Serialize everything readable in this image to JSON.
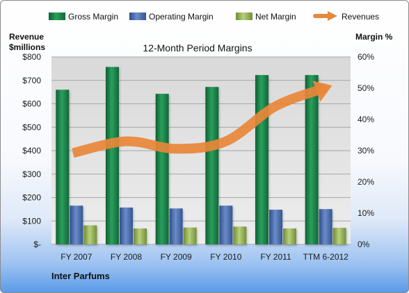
{
  "chart_data": {
    "type": "bar",
    "title": "12-Month Period Margins",
    "company": "Inter Parfums",
    "left_axis_label": [
      "Revenue",
      "$millions"
    ],
    "right_axis_label": "Margin %",
    "categories": [
      "FY 2007",
      "FY 2008",
      "FY 2009",
      "FY 2010",
      "FY 2011",
      "TTM 6-2012"
    ],
    "left_ticks": [
      "$-",
      "$100",
      "$200",
      "$300",
      "$400",
      "$500",
      "$600",
      "$700",
      "$800"
    ],
    "right_ticks": [
      "0%",
      "10%",
      "20%",
      "30%",
      "40%",
      "50%",
      "60%"
    ],
    "ylim_left": [
      0,
      800
    ],
    "ylim_right": [
      0,
      60
    ],
    "series": [
      {
        "name": "Gross Margin",
        "axis": "right",
        "unit": "%",
        "values": [
          49.5,
          56.8,
          48.2,
          50.4,
          54.2,
          54.2
        ],
        "color": "#1f8a4c"
      },
      {
        "name": "Operating Margin",
        "axis": "right",
        "unit": "%",
        "values": [
          12.4,
          11.8,
          11.5,
          12.4,
          11.1,
          11.3
        ],
        "color": "#4a6fb5"
      },
      {
        "name": "Net Margin",
        "axis": "right",
        "unit": "%",
        "values": [
          6.1,
          5.1,
          5.4,
          5.7,
          5.1,
          5.3
        ],
        "color": "#9bbb59"
      },
      {
        "name": "Revenues",
        "axis": "left",
        "unit": "$millions",
        "type": "line",
        "values": [
          390,
          440,
          408,
          440,
          590,
          668
        ],
        "color": "#e8873a"
      }
    ],
    "grid": true,
    "legend_position": "top"
  }
}
